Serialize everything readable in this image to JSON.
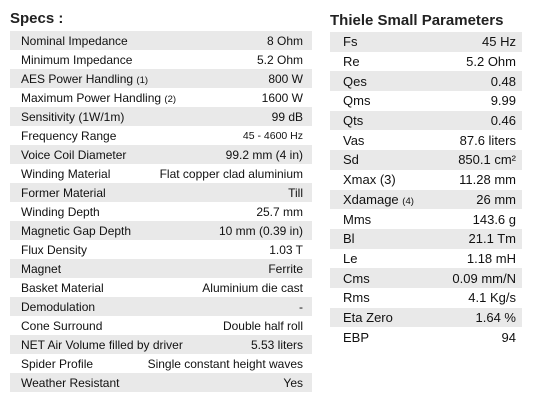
{
  "specs": {
    "title": "Specs :",
    "rows": [
      {
        "label": "Nominal Impedance",
        "note": "",
        "value": "8 Ohm"
      },
      {
        "label": "Minimum Impedance",
        "note": "",
        "value": "5.2 Ohm"
      },
      {
        "label": "AES Power Handling",
        "note": "(1)",
        "value": "800 W"
      },
      {
        "label": "Maximum Power Handling",
        "note": "(2)",
        "value": "1600 W"
      },
      {
        "label": "Sensitivity (1W/1m)",
        "note": "",
        "value": "99 dB"
      },
      {
        "label": "Frequency Range",
        "note": "",
        "value": "45 - 4600 Hz"
      },
      {
        "label": "Voice Coil Diameter",
        "note": "",
        "value": "99.2 mm (4 in)"
      },
      {
        "label": "Winding Material",
        "note": "",
        "value": "Flat copper clad aluminium"
      },
      {
        "label": "Former Material",
        "note": "",
        "value": "Till"
      },
      {
        "label": "Winding Depth",
        "note": "",
        "value": "25.7 mm"
      },
      {
        "label": "Magnetic Gap Depth",
        "note": "",
        "value": "10 mm (0.39 in)"
      },
      {
        "label": "Flux Density",
        "note": "",
        "value": "1.03 T"
      },
      {
        "label": "Magnet",
        "note": "",
        "value": "Ferrite"
      },
      {
        "label": "Basket Material",
        "note": "",
        "value": "Aluminium die cast"
      },
      {
        "label": "Demodulation",
        "note": "",
        "value": "-"
      },
      {
        "label": "Cone Surround",
        "note": "",
        "value": "Double half roll"
      },
      {
        "label": "NET Air Volume filled by driver",
        "note": "",
        "value": "5.53 liters"
      },
      {
        "label": "Spider Profile",
        "note": "",
        "value": "Single constant height waves"
      },
      {
        "label": "Weather Resistant",
        "note": "",
        "value": "Yes"
      }
    ]
  },
  "ts": {
    "title": "Thiele Small Parameters",
    "rows": [
      {
        "label": "Fs",
        "note": "",
        "value": "45 Hz"
      },
      {
        "label": "Re",
        "note": "",
        "value": "5.2 Ohm"
      },
      {
        "label": "Qes",
        "note": "",
        "value": "0.48"
      },
      {
        "label": "Qms",
        "note": "",
        "value": "9.99"
      },
      {
        "label": "Qts",
        "note": "",
        "value": "0.46"
      },
      {
        "label": "Vas",
        "note": "",
        "value": "87.6 liters"
      },
      {
        "label": "Sd",
        "note": "",
        "value": "850.1 cm²"
      },
      {
        "label": "Xmax (3)",
        "note": "",
        "value": "11.28 mm"
      },
      {
        "label": "Xdamage",
        "note": "(4)",
        "value": "26 mm"
      },
      {
        "label": "Mms",
        "note": "",
        "value": "143.6 g"
      },
      {
        "label": "Bl",
        "note": "",
        "value": "21.1 Tm"
      },
      {
        "label": "Le",
        "note": "",
        "value": "1.18 mH"
      },
      {
        "label": "Cms",
        "note": "",
        "value": "0.09 mm/N"
      },
      {
        "label": "Rms",
        "note": "",
        "value": "4.1 Kg/s"
      },
      {
        "label": "Eta Zero",
        "note": "",
        "value": "1.64 %"
      },
      {
        "label": "EBP",
        "note": "",
        "value": "94"
      }
    ]
  }
}
